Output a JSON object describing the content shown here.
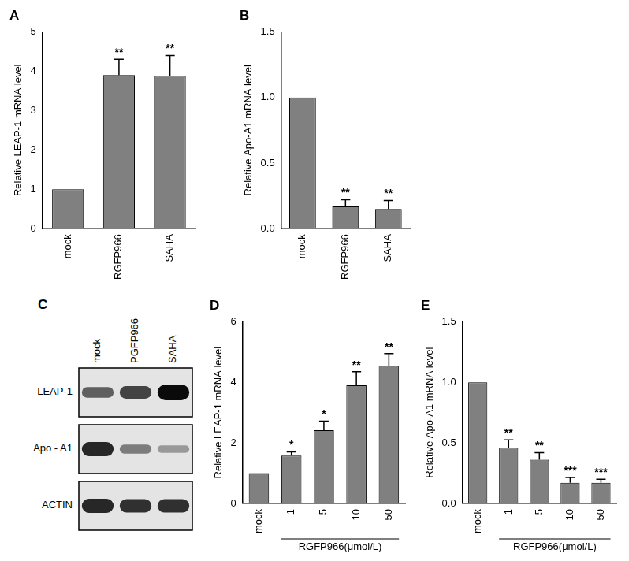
{
  "chart_data": [
    {
      "type": "bar",
      "title": "A",
      "ylabel": "Relative LEAP-1 mRNA level",
      "categories": [
        "mock",
        "RGFP966",
        "SAHA"
      ],
      "values": [
        1,
        3.9,
        3.88
      ],
      "errors": [
        0,
        0.4,
        0.52
      ],
      "annotations": [
        null,
        "**",
        "**"
      ],
      "color": "#808080",
      "ylim": [
        0,
        5
      ],
      "yticks": [
        0,
        1,
        2,
        3,
        4,
        5
      ],
      "grid": false
    },
    {
      "type": "bar",
      "title": "B",
      "ylabel": "Relative Apo-A1 mRNA level",
      "categories": [
        "mock",
        "RGFP966",
        "SAHA"
      ],
      "values": [
        1,
        0.17,
        0.15
      ],
      "errors": [
        0,
        0.05,
        0.065
      ],
      "annotations": [
        null,
        "**",
        "**"
      ],
      "color": "#808080",
      "ylim": [
        0,
        1.5
      ],
      "yticks": [
        {
          "value": 0,
          "label": "0.0"
        },
        0.5,
        {
          "value": 1,
          "label": "1.0"
        },
        1.5
      ],
      "grid": false
    },
    {
      "type": "bar",
      "title": "D",
      "ylabel": "Relative LEAP-1 mRNA level",
      "xlabel": "RGFP966(μmol/L)",
      "categories": [
        "mock",
        "1",
        "5",
        "10",
        "50"
      ],
      "values": [
        1,
        1.58,
        2.42,
        3.9,
        4.55
      ],
      "errors": [
        0,
        0.12,
        0.3,
        0.45,
        0.4
      ],
      "annotations": [
        null,
        "*",
        "*",
        "**",
        "**"
      ],
      "color": "#808080",
      "ylim": [
        0,
        6
      ],
      "yticks": [
        0,
        2,
        4,
        6
      ],
      "grid": false
    },
    {
      "type": "bar",
      "title": "E",
      "ylabel": "Relative Apo-A1 mRNA level",
      "xlabel": "RGFP966(μmol/L)",
      "categories": [
        "mock",
        "1",
        "5",
        "10",
        "50"
      ],
      "values": [
        1,
        0.46,
        0.36,
        0.17,
        0.17
      ],
      "errors": [
        0,
        0.065,
        0.06,
        0.045,
        0.03
      ],
      "annotations": [
        null,
        "**",
        "**",
        "***",
        "***"
      ],
      "color": "#808080",
      "ylim": [
        0,
        1.5
      ],
      "yticks": [
        {
          "value": 0,
          "label": "0.0"
        },
        0.5,
        {
          "value": 1,
          "label": "1.0"
        },
        1.5
      ],
      "grid": false
    }
  ],
  "blot": {
    "title": "C",
    "lanes": [
      "mock",
      "PGFP966",
      "SAHA"
    ],
    "rows": [
      {
        "name": "LEAP-1",
        "intensity": [
          0.55,
          0.7,
          1.0
        ]
      },
      {
        "name": "Apo - A1",
        "intensity": [
          0.85,
          0.4,
          0.25
        ]
      },
      {
        "name": "ACTIN",
        "intensity": [
          0.85,
          0.8,
          0.8
        ]
      }
    ]
  }
}
